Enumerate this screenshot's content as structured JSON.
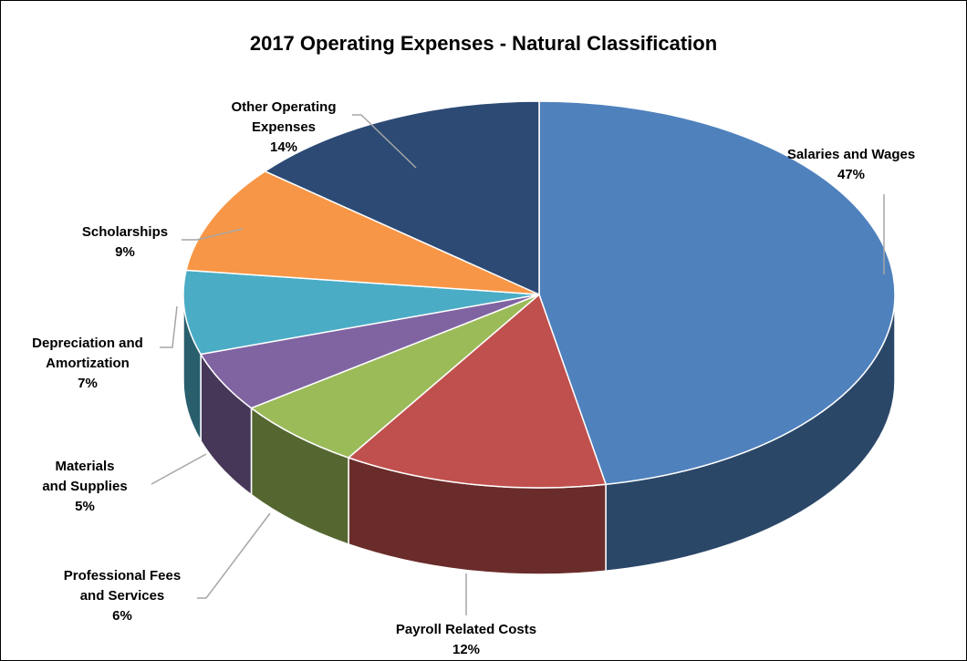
{
  "chart_data": {
    "type": "pie3d",
    "title": "2017 Operating Expenses - Natural Classification",
    "categories": [
      "Salaries and Wages",
      "Payroll Related Costs",
      "Professional Fees and Services",
      "Materials and Supplies",
      "Depreciation and Amortization",
      "Scholarships",
      "Other Operating Expenses"
    ],
    "values": [
      47,
      12,
      6,
      5,
      7,
      9,
      14
    ],
    "value_labels": [
      "47%",
      "12%",
      "6%",
      "5%",
      "7%",
      "9%",
      "14%"
    ],
    "colors": [
      "#4f81bd",
      "#c0504d",
      "#9bbb59",
      "#8064a2",
      "#4bacc6",
      "#f79646",
      "#2c4a74"
    ]
  }
}
